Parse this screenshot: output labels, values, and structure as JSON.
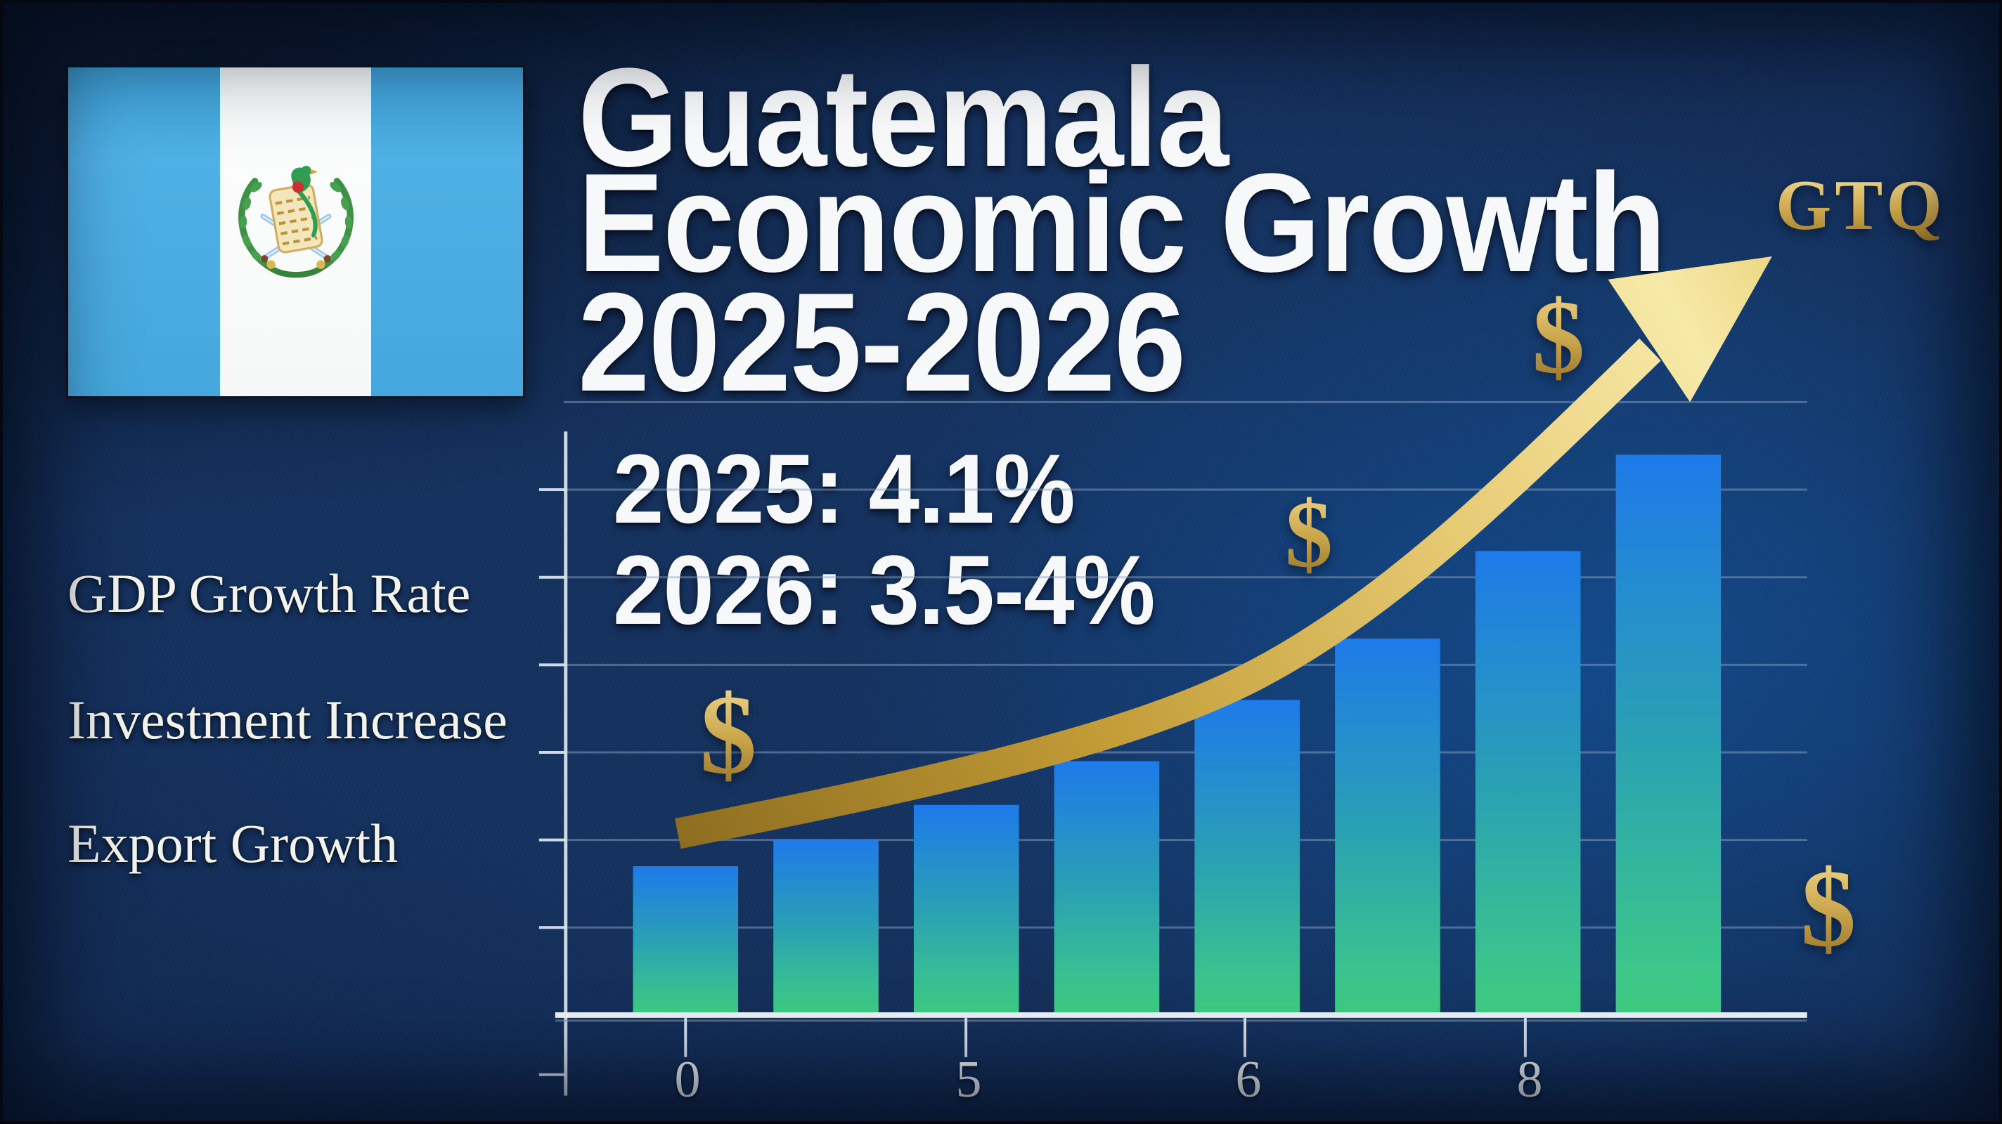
{
  "poster": {
    "title_lines": [
      "Guatemala",
      "Economic Growth",
      "2025-2026"
    ],
    "currency_code": "GTQ",
    "stats_lines": [
      "2025: 4.1%",
      "2026: 3.5-4%"
    ],
    "side_labels": [
      "GDP Growth Rate",
      "Investment Increase",
      "Export Growth"
    ],
    "dollar_symbol": "$",
    "flag": {
      "country": "Guatemala",
      "stripe_blue": "#45a7dd",
      "stripe_white": "#fafbfb"
    },
    "colors": {
      "background_navy": "#13294f",
      "accent_gold": "#d2b05c",
      "bar_blue_top": "#1e7ae9",
      "bar_green_bottom": "#3fce82",
      "text_white": "#f5f7f9",
      "gridline": "#8fa6c4"
    }
  },
  "chart_data": {
    "type": "bar",
    "title": "Guatemala Economic Growth 2025-2026",
    "annotations": [
      "2025: 4.1%",
      "2026: 3.5-4%"
    ],
    "currency_label": "GTQ",
    "values": [
      1.7,
      2.0,
      2.4,
      2.9,
      3.6,
      4.3,
      5.3,
      6.4
    ],
    "value_unit": "relative bar height in gridline units (decorative infographic; no numeric y-axis shown)",
    "x_ticks": [
      {
        "label": "0",
        "bar_index": 0
      },
      {
        "label": "5",
        "bar_index": 2
      },
      {
        "label": "6",
        "bar_index": 4
      },
      {
        "label": "8",
        "bar_index": 6
      }
    ],
    "ylim": [
      0,
      7
    ],
    "grid": true,
    "legend": null,
    "trend_arrow": {
      "direction": "up",
      "color": "gold"
    }
  }
}
